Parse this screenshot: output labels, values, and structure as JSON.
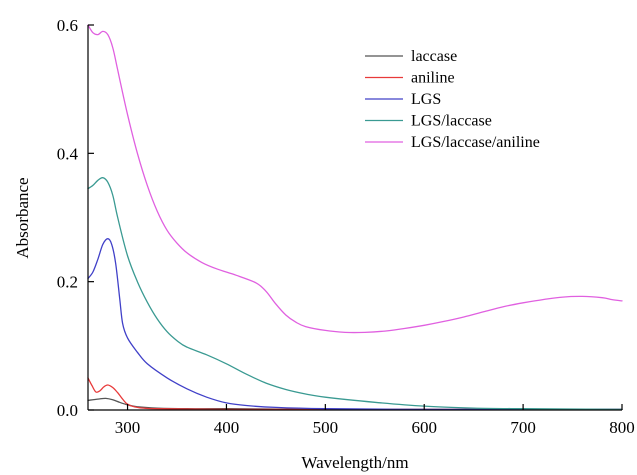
{
  "chart_data": {
    "type": "line",
    "title": "",
    "xlabel": "Wavelength/nm",
    "ylabel": "Absorbance",
    "xlim": [
      260,
      800
    ],
    "ylim": [
      0.0,
      0.6
    ],
    "x_ticks": [
      300,
      400,
      500,
      600,
      700,
      800
    ],
    "x_tick_labels": [
      "300",
      "400",
      "500",
      "600",
      "700",
      "800"
    ],
    "y_ticks": [
      0.0,
      0.2,
      0.4,
      0.6
    ],
    "y_tick_labels": [
      "0.0",
      "0.2",
      "0.4",
      "0.6"
    ],
    "grid": false,
    "legend_position": "top-right",
    "series": [
      {
        "name": "laccase",
        "color": "#555555",
        "points": [
          [
            260,
            0.015
          ],
          [
            270,
            0.017
          ],
          [
            278,
            0.018
          ],
          [
            285,
            0.016
          ],
          [
            292,
            0.012
          ],
          [
            300,
            0.008
          ],
          [
            310,
            0.005
          ],
          [
            330,
            0.003
          ],
          [
            360,
            0.002
          ],
          [
            400,
            0.002
          ],
          [
            500,
            0.001
          ],
          [
            600,
            0.001
          ],
          [
            700,
            0.001
          ],
          [
            800,
            0.001
          ]
        ]
      },
      {
        "name": "aniline",
        "color": "#e83a3a",
        "points": [
          [
            260,
            0.05
          ],
          [
            264,
            0.038
          ],
          [
            268,
            0.028
          ],
          [
            272,
            0.03
          ],
          [
            276,
            0.036
          ],
          [
            280,
            0.039
          ],
          [
            285,
            0.035
          ],
          [
            290,
            0.027
          ],
          [
            295,
            0.017
          ],
          [
            300,
            0.009
          ],
          [
            310,
            0.004
          ],
          [
            330,
            0.002
          ],
          [
            400,
            0.001
          ],
          [
            500,
            0.001
          ],
          [
            600,
            0.001
          ],
          [
            700,
            0.001
          ],
          [
            800,
            0.001
          ]
        ]
      },
      {
        "name": "LGS",
        "color": "#4040c8",
        "points": [
          [
            260,
            0.205
          ],
          [
            265,
            0.215
          ],
          [
            270,
            0.235
          ],
          [
            275,
            0.258
          ],
          [
            280,
            0.267
          ],
          [
            284,
            0.258
          ],
          [
            288,
            0.228
          ],
          [
            292,
            0.175
          ],
          [
            295,
            0.135
          ],
          [
            300,
            0.112
          ],
          [
            310,
            0.09
          ],
          [
            320,
            0.072
          ],
          [
            340,
            0.05
          ],
          [
            360,
            0.033
          ],
          [
            380,
            0.02
          ],
          [
            400,
            0.011
          ],
          [
            420,
            0.007
          ],
          [
            450,
            0.004
          ],
          [
            500,
            0.002
          ],
          [
            600,
            0.001
          ],
          [
            700,
            0.001
          ],
          [
            800,
            0.001
          ]
        ]
      },
      {
        "name": "LGS/laccase",
        "color": "#3a9a92",
        "points": [
          [
            260,
            0.345
          ],
          [
            265,
            0.35
          ],
          [
            270,
            0.358
          ],
          [
            275,
            0.362
          ],
          [
            280,
            0.355
          ],
          [
            285,
            0.335
          ],
          [
            290,
            0.3
          ],
          [
            300,
            0.24
          ],
          [
            310,
            0.2
          ],
          [
            320,
            0.168
          ],
          [
            330,
            0.142
          ],
          [
            340,
            0.122
          ],
          [
            350,
            0.108
          ],
          [
            360,
            0.098
          ],
          [
            380,
            0.086
          ],
          [
            400,
            0.072
          ],
          [
            420,
            0.056
          ],
          [
            440,
            0.042
          ],
          [
            460,
            0.032
          ],
          [
            480,
            0.025
          ],
          [
            500,
            0.02
          ],
          [
            550,
            0.012
          ],
          [
            600,
            0.006
          ],
          [
            650,
            0.003
          ],
          [
            700,
            0.002
          ],
          [
            800,
            0.001
          ]
        ]
      },
      {
        "name": "LGS/laccase/aniline",
        "color": "#e060e0",
        "points": [
          [
            260,
            0.6
          ],
          [
            265,
            0.588
          ],
          [
            270,
            0.585
          ],
          [
            275,
            0.59
          ],
          [
            280,
            0.585
          ],
          [
            285,
            0.565
          ],
          [
            290,
            0.53
          ],
          [
            300,
            0.46
          ],
          [
            310,
            0.4
          ],
          [
            320,
            0.35
          ],
          [
            330,
            0.31
          ],
          [
            340,
            0.28
          ],
          [
            350,
            0.26
          ],
          [
            360,
            0.245
          ],
          [
            375,
            0.23
          ],
          [
            390,
            0.22
          ],
          [
            410,
            0.21
          ],
          [
            430,
            0.198
          ],
          [
            440,
            0.185
          ],
          [
            450,
            0.165
          ],
          [
            460,
            0.148
          ],
          [
            470,
            0.137
          ],
          [
            480,
            0.13
          ],
          [
            500,
            0.124
          ],
          [
            520,
            0.121
          ],
          [
            540,
            0.121
          ],
          [
            560,
            0.123
          ],
          [
            580,
            0.127
          ],
          [
            600,
            0.132
          ],
          [
            620,
            0.138
          ],
          [
            640,
            0.145
          ],
          [
            660,
            0.153
          ],
          [
            680,
            0.161
          ],
          [
            700,
            0.167
          ],
          [
            720,
            0.172
          ],
          [
            740,
            0.176
          ],
          [
            760,
            0.177
          ],
          [
            780,
            0.175
          ],
          [
            790,
            0.172
          ],
          [
            800,
            0.17
          ]
        ]
      }
    ]
  }
}
